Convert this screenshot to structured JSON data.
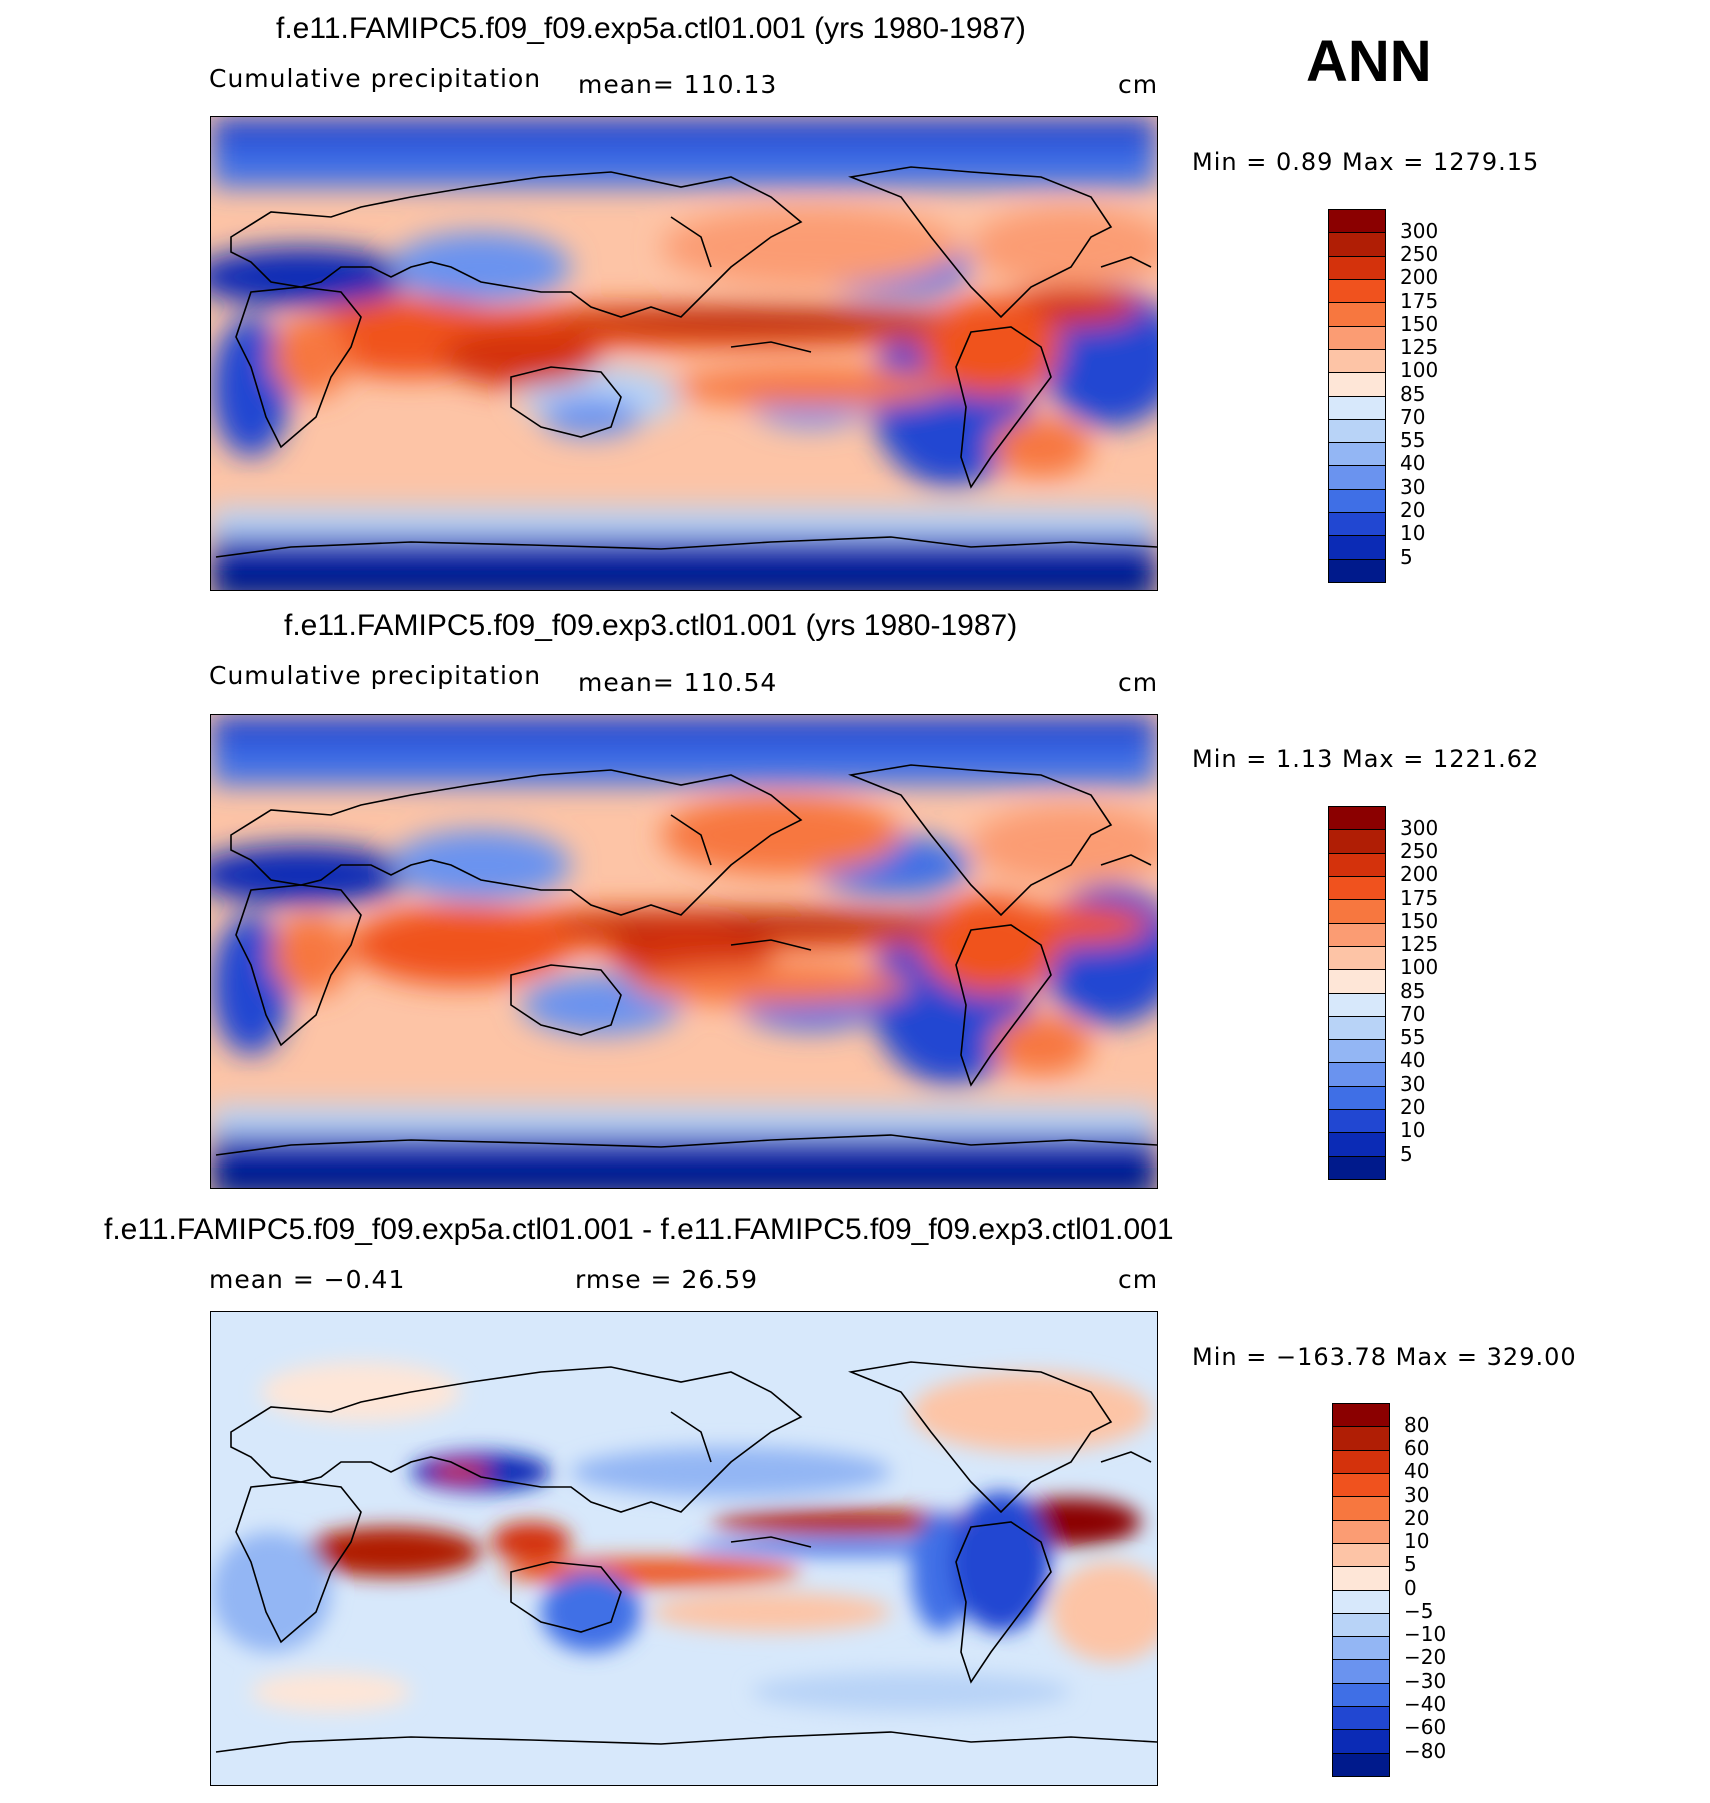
{
  "season": "ANN",
  "panels": [
    {
      "title": "f.e11.FAMIPC5.f09_f09.exp5a.ctl01.001 (yrs 1980-1987)",
      "left_label": "Cumulative precipitation",
      "mid_label": "mean=  110.13",
      "units": "cm",
      "minmax": "Min  =     0.89  Max  =  1279.15"
    },
    {
      "title": "f.e11.FAMIPC5.f09_f09.exp3.ctl01.001 (yrs 1980-1987)",
      "left_label": "Cumulative precipitation",
      "mid_label": "mean=  110.54",
      "units": "cm",
      "minmax": "Min  =     1.13  Max  =  1221.62"
    },
    {
      "title": "f.e11.FAMIPC5.f09_f09.exp5a.ctl01.001 - f.e11.FAMIPC5.f09_f09.exp3.ctl01.001",
      "left_label": "mean  =   −0.41",
      "mid_label": "rmse  =    26.59",
      "units": "cm",
      "minmax": "Min  = −163.78  Max  =  329.00"
    }
  ],
  "colorbars": {
    "precip": {
      "labels": [
        "300",
        "250",
        "200",
        "175",
        "150",
        "125",
        "100",
        "85",
        "70",
        "55",
        "40",
        "30",
        "20",
        "10",
        "5"
      ],
      "colors": [
        "#8b0000",
        "#b01e05",
        "#d4320c",
        "#f0521e",
        "#f7773f",
        "#fb9c73",
        "#fdc4a6",
        "#fee6d7",
        "#d7e8fb",
        "#b8d3f7",
        "#93b6f4",
        "#6a93ef",
        "#3f6fe6",
        "#2147d2",
        "#0b2bb6",
        "#001a8c"
      ]
    },
    "diff": {
      "labels": [
        "80",
        "60",
        "40",
        "30",
        "20",
        "10",
        "5",
        "0",
        "−5",
        "−10",
        "−20",
        "−30",
        "−40",
        "−60",
        "−80"
      ],
      "colors": [
        "#8b0000",
        "#b01e05",
        "#d4320c",
        "#f0521e",
        "#f7773f",
        "#fb9c73",
        "#fdc4a6",
        "#fee6d7",
        "#d7e8fb",
        "#b8d3f7",
        "#93b6f4",
        "#6a93ef",
        "#3f6fe6",
        "#2147d2",
        "#0b2bb6",
        "#001a8c"
      ]
    }
  }
}
